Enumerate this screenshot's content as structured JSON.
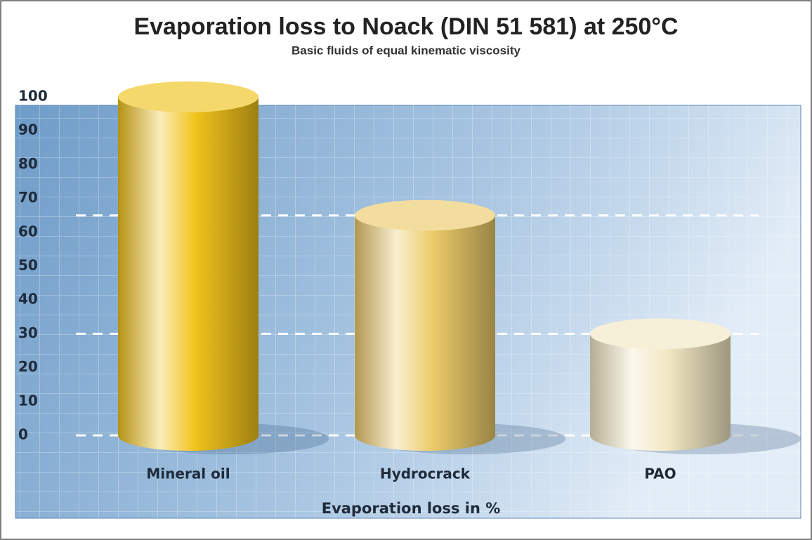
{
  "chart_data": {
    "type": "bar",
    "title": "Evaporation loss to Noack (DIN 51 581) at 250°C",
    "subtitle": "Basic fluids of equal kinematic viscosity",
    "x_label": "Evaporation loss in %",
    "categories": [
      "Mineral oil",
      "Hydrocrack",
      "PAO"
    ],
    "values": [
      100,
      65,
      30
    ],
    "colors": [
      "#f0c31c",
      "#eccb6a",
      "#f3e8c4"
    ],
    "ylim": [
      0,
      100
    ],
    "yticks": [
      0,
      10,
      20,
      30,
      40,
      50,
      60,
      70,
      80,
      90,
      100
    ],
    "guide_lines": [
      0,
      30,
      65
    ]
  }
}
